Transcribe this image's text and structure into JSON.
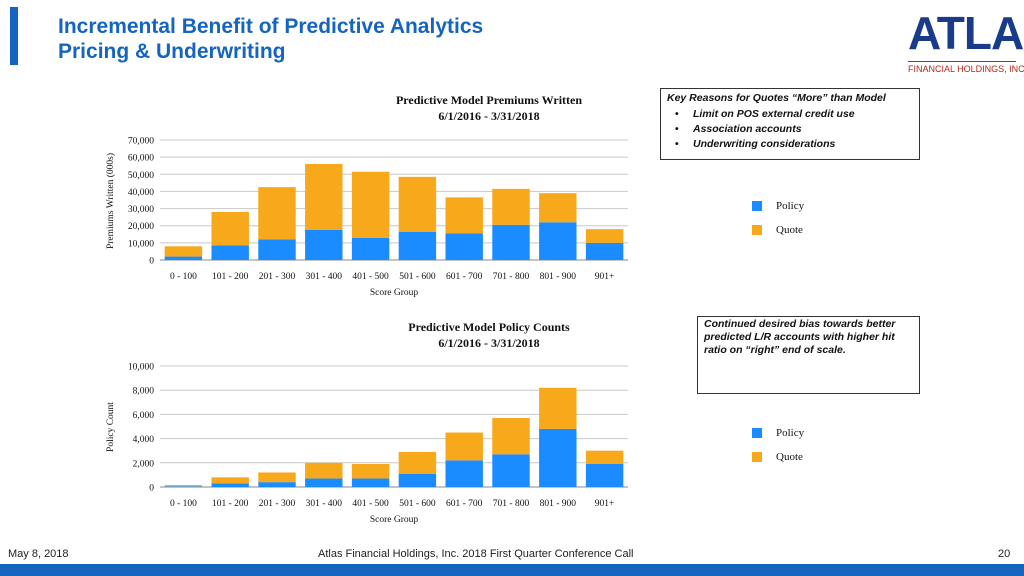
{
  "header": {
    "title_line1": "Incremental Benefit of Predictive Analytics",
    "title_line2": "Pricing & Underwriting",
    "logo_text": "ATLAS",
    "logo_subtext": "FINANCIAL HOLDINGS, INC."
  },
  "colors": {
    "policy": "#1a8cff",
    "quote": "#f7a81b",
    "accent": "#1565c0"
  },
  "chart_data": [
    {
      "type": "bar",
      "stacked": true,
      "title": "Predictive Model Premiums Written",
      "subtitle": "6/1/2016 - 3/31/2018",
      "xlabel": "Score Group",
      "ylabel": "Premiums Written (000s)",
      "categories": [
        "0 - 100",
        "101 - 200",
        "201 - 300",
        "301 - 400",
        "401 - 500",
        "501 - 600",
        "601 - 700",
        "701 - 800",
        "801 - 900",
        "901+"
      ],
      "series": [
        {
          "name": "Policy",
          "values": [
            2000,
            8500,
            12000,
            17500,
            13000,
            16500,
            15500,
            20500,
            22000,
            10000
          ]
        },
        {
          "name": "Quote",
          "values": [
            6000,
            19500,
            30500,
            38500,
            38500,
            32000,
            21000,
            21000,
            17000,
            8000
          ]
        }
      ],
      "ylim": [
        0,
        70000
      ],
      "yticks": [
        "0",
        "10,000",
        "20,000",
        "30,000",
        "40,000",
        "50,000",
        "60,000",
        "70,000"
      ],
      "legend": [
        "Policy",
        "Quote"
      ],
      "legend_position": "right"
    },
    {
      "type": "bar",
      "stacked": true,
      "title": "Predictive Model Policy Counts",
      "subtitle": "6/1/2016 - 3/31/2018",
      "xlabel": "Score Group",
      "ylabel": "Policy Count",
      "categories": [
        "0 - 100",
        "101 - 200",
        "201 - 300",
        "301 - 400",
        "401 - 500",
        "501 - 600",
        "601 - 700",
        "701 - 800",
        "801 - 900",
        "901+"
      ],
      "series": [
        {
          "name": "Policy",
          "values": [
            60,
            300,
            400,
            700,
            700,
            1100,
            2200,
            2700,
            4800,
            1900
          ]
        },
        {
          "name": "Quote",
          "values": [
            100,
            500,
            800,
            1300,
            1200,
            1800,
            2300,
            3000,
            3400,
            1100
          ]
        }
      ],
      "ylim": [
        0,
        10000
      ],
      "yticks": [
        "0",
        "2,000",
        "4,000",
        "6,000",
        "8,000",
        "10,000"
      ],
      "legend": [
        "Policy",
        "Quote"
      ],
      "legend_position": "right"
    }
  ],
  "notes": {
    "box1_header": "Key Reasons for Quotes “More” than Model",
    "box1_bullets": [
      "Limit on POS external credit use",
      "Association accounts",
      "Underwriting considerations"
    ],
    "box2_text": "Continued desired bias towards better predicted L/R accounts with higher hit ratio on “right” end of scale."
  },
  "footer": {
    "date": "May 8, 2018",
    "center": "Atlas Financial Holdings, Inc. 2018 First Quarter Conference Call",
    "page": "20"
  }
}
